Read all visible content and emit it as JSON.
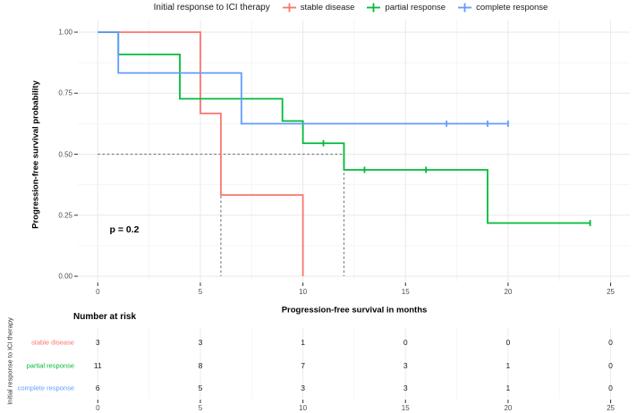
{
  "legend": {
    "title": "Initial response to ICI therapy",
    "items": [
      {
        "label": "stable disease",
        "color": "#F8766D"
      },
      {
        "label": "partial response",
        "color": "#00BA38"
      },
      {
        "label": "complete response",
        "color": "#619CFF"
      }
    ]
  },
  "chart_data": {
    "type": "line",
    "subtype": "kaplan-meier-step-plot",
    "title": "",
    "xlabel": "Progression-free survival in months",
    "ylabel": "Progression-free survival probability",
    "xlim": [
      0,
      25
    ],
    "ylim": [
      0,
      1
    ],
    "x_ticks": [
      0,
      5,
      10,
      15,
      20,
      25
    ],
    "y_ticks": [
      {
        "value": 0.0,
        "label": "0.00"
      },
      {
        "value": 0.25,
        "label": "0.25"
      },
      {
        "value": 0.5,
        "label": "0.50"
      },
      {
        "value": 0.75,
        "label": "0.75"
      },
      {
        "value": 1.0,
        "label": "1.00"
      }
    ],
    "grid": true,
    "legend_position": "top",
    "p_value": "p = 0.2",
    "median_guides": {
      "survival_level": 0.5,
      "times": [
        6,
        12
      ]
    },
    "series": [
      {
        "name": "stable disease",
        "color": "#F8766D",
        "steps": [
          [
            0,
            1.0
          ],
          [
            5,
            1.0
          ],
          [
            5,
            0.667
          ],
          [
            6,
            0.667
          ],
          [
            6,
            0.333
          ],
          [
            10,
            0.333
          ],
          [
            10,
            0.0
          ]
        ],
        "censors": []
      },
      {
        "name": "partial response",
        "color": "#00BA38",
        "steps": [
          [
            0,
            1.0
          ],
          [
            1,
            1.0
          ],
          [
            1,
            0.909
          ],
          [
            4,
            0.909
          ],
          [
            4,
            0.727
          ],
          [
            9,
            0.727
          ],
          [
            9,
            0.636
          ],
          [
            10,
            0.636
          ],
          [
            10,
            0.545
          ],
          [
            12,
            0.545
          ],
          [
            12,
            0.436
          ],
          [
            19,
            0.436
          ],
          [
            19,
            0.218
          ],
          [
            24,
            0.218
          ]
        ],
        "censors": [
          [
            11,
            0.545
          ],
          [
            13,
            0.436
          ],
          [
            16,
            0.436
          ],
          [
            24,
            0.218
          ]
        ]
      },
      {
        "name": "complete response",
        "color": "#619CFF",
        "steps": [
          [
            0,
            1.0
          ],
          [
            1,
            1.0
          ],
          [
            1,
            0.833
          ],
          [
            7,
            0.833
          ],
          [
            7,
            0.625
          ],
          [
            20,
            0.625
          ]
        ],
        "censors": [
          [
            17,
            0.625
          ],
          [
            19,
            0.625
          ],
          [
            20,
            0.625
          ]
        ]
      }
    ],
    "risk_table": {
      "title": "Number at risk",
      "y_axis_label": "Initial response to ICI therapy",
      "time_points": [
        0,
        5,
        10,
        15,
        20,
        25
      ],
      "rows": [
        {
          "label": "stable disease",
          "color": "#F8766D",
          "values": [
            3,
            3,
            1,
            0,
            0,
            0
          ]
        },
        {
          "label": "partial response",
          "color": "#00BA38",
          "values": [
            11,
            8,
            7,
            3,
            1,
            0
          ]
        },
        {
          "label": "complete response",
          "color": "#619CFF",
          "values": [
            6,
            5,
            3,
            3,
            1,
            0
          ]
        }
      ]
    }
  }
}
